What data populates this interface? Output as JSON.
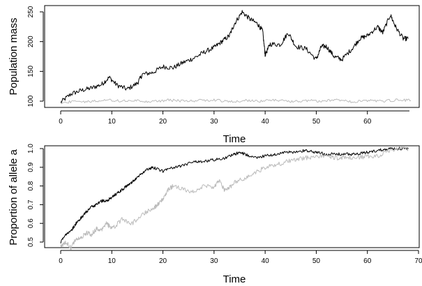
{
  "chart_data": [
    {
      "type": "line",
      "xlabel": "Time",
      "ylabel": "Population mass",
      "xlim": [
        0,
        70
      ],
      "ylim": [
        93,
        255
      ],
      "xticks": [
        0,
        10,
        20,
        30,
        40,
        50,
        60
      ],
      "yticks": [
        100,
        150,
        200,
        250
      ],
      "grid": false,
      "series": [
        {
          "color": "#000000",
          "x": [
            0,
            2,
            4,
            6,
            8,
            9.5,
            11,
            13,
            15,
            16,
            18,
            20,
            22,
            24,
            26,
            28,
            30,
            31.5,
            33,
            34,
            35.5,
            37,
            38.5,
            39.5,
            40,
            41,
            43,
            44.5,
            46,
            48,
            50,
            51,
            52,
            53.5,
            55,
            57,
            58.5,
            60,
            62,
            63,
            64.5,
            65.5,
            67,
            68
          ],
          "y": [
            98,
            112,
            118,
            122,
            128,
            140,
            127,
            120,
            130,
            145,
            148,
            158,
            156,
            165,
            172,
            182,
            190,
            200,
            210,
            230,
            250,
            238,
            230,
            218,
            178,
            196,
            195,
            215,
            192,
            188,
            170,
            192,
            192,
            175,
            170,
            188,
            205,
            210,
            225,
            215,
            245,
            225,
            205,
            205
          ]
        },
        {
          "color": "#bbbbbb",
          "x": [
            0,
            3,
            6,
            9,
            12,
            15,
            18,
            21,
            24,
            27,
            30,
            33,
            36,
            39,
            42,
            45,
            48,
            51,
            54,
            57,
            60,
            63,
            66,
            68.5
          ],
          "y": [
            97,
            100,
            99,
            102,
            100,
            101,
            99,
            102,
            100,
            101,
            102,
            99,
            101,
            100,
            102,
            99,
            101,
            100,
            102,
            99,
            101,
            100,
            102,
            101
          ]
        }
      ]
    },
    {
      "type": "line",
      "xlabel": "Time",
      "ylabel": "Proportion of allele a",
      "xlim": [
        -3,
        70
      ],
      "ylim": [
        0.48,
        1.02
      ],
      "xticks": [
        0,
        10,
        20,
        30,
        40,
        50,
        60,
        70
      ],
      "yticks": [
        0.5,
        0.6,
        0.7,
        0.8,
        0.9,
        1.0
      ],
      "grid": false,
      "series": [
        {
          "color": "#000000",
          "x": [
            0,
            1,
            2,
            3,
            4,
            5,
            6,
            7,
            8,
            9,
            10,
            11,
            12,
            13,
            14,
            15,
            16,
            17,
            18,
            20,
            22,
            24,
            26,
            28,
            30,
            32,
            34,
            35,
            36,
            38,
            40,
            42,
            44,
            46,
            48,
            50,
            52,
            54,
            56,
            58,
            60,
            62,
            64,
            66,
            68
          ],
          "y": [
            0.5,
            0.54,
            0.56,
            0.6,
            0.63,
            0.66,
            0.69,
            0.7,
            0.72,
            0.72,
            0.74,
            0.76,
            0.78,
            0.8,
            0.82,
            0.85,
            0.87,
            0.89,
            0.9,
            0.88,
            0.9,
            0.91,
            0.93,
            0.93,
            0.94,
            0.95,
            0.97,
            0.98,
            0.97,
            0.95,
            0.96,
            0.97,
            0.98,
            0.98,
            0.99,
            0.98,
            0.97,
            0.97,
            0.97,
            0.97,
            0.98,
            0.99,
            1.0,
            1.0,
            1.0
          ]
        },
        {
          "color": "#bbbbbb",
          "x": [
            0,
            1,
            2,
            3,
            4,
            5,
            6,
            7,
            8,
            9,
            10,
            12,
            14,
            16,
            18,
            19,
            20,
            21,
            22,
            24,
            26,
            28,
            30,
            31,
            32,
            33,
            34,
            36,
            38,
            40,
            42,
            44,
            46,
            48,
            50,
            52,
            54,
            56,
            58,
            60,
            62,
            64,
            66,
            68
          ],
          "y": [
            0.48,
            0.5,
            0.47,
            0.52,
            0.52,
            0.55,
            0.54,
            0.57,
            0.56,
            0.6,
            0.57,
            0.62,
            0.6,
            0.65,
            0.68,
            0.7,
            0.73,
            0.78,
            0.8,
            0.78,
            0.77,
            0.8,
            0.79,
            0.83,
            0.78,
            0.79,
            0.82,
            0.84,
            0.87,
            0.9,
            0.91,
            0.93,
            0.94,
            0.95,
            0.96,
            0.96,
            0.95,
            0.95,
            0.95,
            0.96,
            0.96,
            0.99,
            1.0,
            1.0
          ]
        }
      ]
    }
  ]
}
